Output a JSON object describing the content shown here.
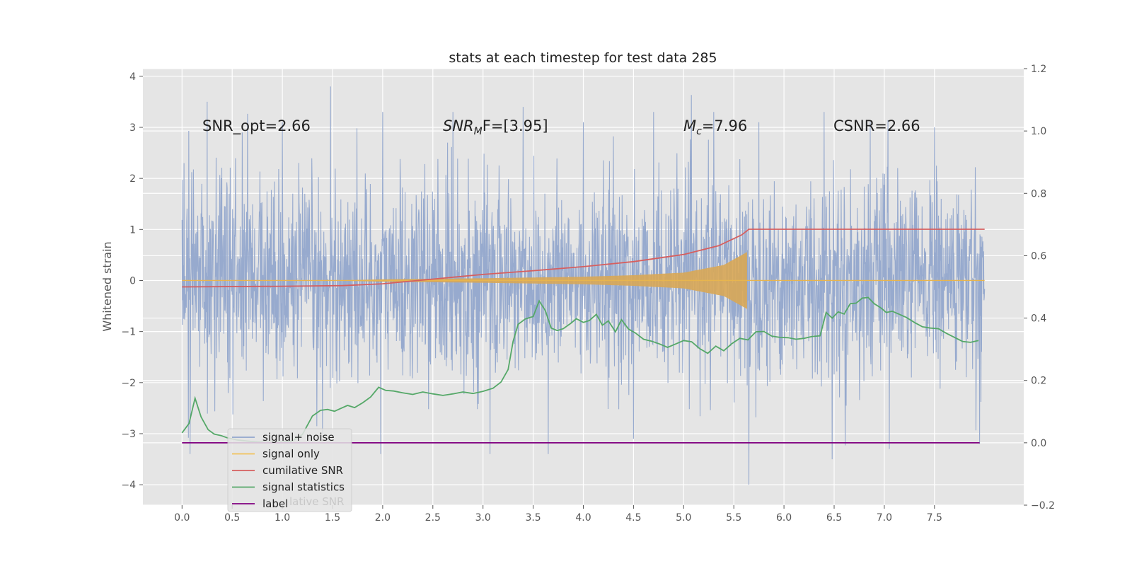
{
  "chart_data": {
    "type": "line",
    "title": "stats at each timestep for test data 285",
    "ylabel": "Whitened strain",
    "xlim": [
      -0.39,
      8.39
    ],
    "ylim": [
      -4.4,
      4.15
    ],
    "ylim_right": [
      -0.2,
      1.2
    ],
    "xticks": [
      "0.0",
      "0.5",
      "1.0",
      "1.5",
      "2.0",
      "2.5",
      "3.0",
      "3.5",
      "4.0",
      "4.5",
      "5.0",
      "5.5",
      "6.0",
      "6.5",
      "7.0",
      "7.5"
    ],
    "yticks": [
      "4",
      "3",
      "2",
      "1",
      "0",
      "−1",
      "−2",
      "−3",
      "−4"
    ],
    "yticks_right": [
      "1.2",
      "1.0",
      "0.8",
      "0.6",
      "0.4",
      "0.2",
      "0.0",
      "−0.2"
    ],
    "grid": true,
    "legend_position": "lower-left",
    "annotations": {
      "snr_opt": "SNR_opt=2.66",
      "snr_mf_main": "SNR",
      "snr_mf_sub": "M",
      "snr_mf_rest": "F=[3.95]",
      "mc_main": "M",
      "mc_sub": "c",
      "mc_rest": "=7.96",
      "csnr": "CSNR=2.66"
    },
    "series": [
      {
        "name": "signal+ noise",
        "color": "#92a6cc",
        "axis": "left",
        "x_range": [
          0.0,
          8.0
        ],
        "noise_band": [
          -1.7,
          1.7
        ],
        "extremes": [
          {
            "x": 0.02,
            "y": 2.3
          },
          {
            "x": 0.25,
            "y": 3.5
          },
          {
            "x": 0.6,
            "y": 2.9
          },
          {
            "x": 1.0,
            "y": 3.1
          },
          {
            "x": 1.48,
            "y": 3.8
          },
          {
            "x": 2.0,
            "y": 3.3
          },
          {
            "x": 2.7,
            "y": 3.3
          },
          {
            "x": 3.4,
            "y": 3.4
          },
          {
            "x": 4.0,
            "y": 3.1
          },
          {
            "x": 4.7,
            "y": 3.3
          },
          {
            "x": 5.3,
            "y": 3.3
          },
          {
            "x": 5.75,
            "y": 3.1
          },
          {
            "x": 6.4,
            "y": 3.3
          },
          {
            "x": 6.86,
            "y": 3.1
          },
          {
            "x": 7.5,
            "y": 3.0
          },
          {
            "x": 0.08,
            "y": -3.4
          },
          {
            "x": 1.4,
            "y": -3.0
          },
          {
            "x": 1.98,
            "y": -3.4
          },
          {
            "x": 3.07,
            "y": -3.4
          },
          {
            "x": 3.65,
            "y": -3.4
          },
          {
            "x": 4.5,
            "y": -3.1
          },
          {
            "x": 5.65,
            "y": -4.0
          },
          {
            "x": 6.48,
            "y": -3.5
          },
          {
            "x": 7.05,
            "y": -3.3
          },
          {
            "x": 7.95,
            "y": -3.2
          }
        ]
      },
      {
        "name": "signal only",
        "color": "#e3b05a",
        "axis": "left",
        "envelope": [
          [
            1.6,
            0.0
          ],
          [
            2.0,
            0.02
          ],
          [
            3.0,
            0.04
          ],
          [
            4.0,
            0.07
          ],
          [
            4.5,
            0.1
          ],
          [
            5.0,
            0.15
          ],
          [
            5.4,
            0.3
          ],
          [
            5.63,
            0.55
          ]
        ],
        "end_x": 8.0
      },
      {
        "name": "cumilative SNR",
        "color": "#d65f5f",
        "axis": "right",
        "x": [
          0.0,
          1.0,
          1.6,
          2.0,
          2.5,
          3.0,
          3.5,
          4.0,
          4.5,
          5.0,
          5.35,
          5.58,
          5.65,
          8.0
        ],
        "y": [
          0.5,
          0.502,
          0.504,
          0.51,
          0.525,
          0.54,
          0.552,
          0.565,
          0.581,
          0.604,
          0.632,
          0.667,
          0.685,
          0.685
        ]
      },
      {
        "name": "signal statistics",
        "color": "#55a868",
        "axis": "right",
        "x": [
          0.0,
          0.07,
          0.13,
          0.19,
          0.26,
          0.32,
          0.39,
          0.45,
          0.55,
          0.7,
          0.85,
          1.0,
          1.1,
          1.2,
          1.3,
          1.38,
          1.45,
          1.52,
          1.58,
          1.65,
          1.72,
          1.8,
          1.88,
          1.96,
          2.03,
          2.11,
          2.2,
          2.3,
          2.4,
          2.5,
          2.6,
          2.7,
          2.8,
          2.9,
          3.0,
          3.1,
          3.18,
          3.25,
          3.3,
          3.35,
          3.42,
          3.5,
          3.56,
          3.62,
          3.68,
          3.74,
          3.8,
          3.87,
          3.93,
          4.0,
          4.06,
          4.13,
          4.19,
          4.25,
          4.32,
          4.38,
          4.45,
          4.52,
          4.6,
          4.68,
          4.76,
          4.84,
          4.92,
          5.0,
          5.08,
          5.16,
          5.24,
          5.32,
          5.4,
          5.48,
          5.56,
          5.64,
          5.72,
          5.8,
          5.88,
          5.96,
          6.04,
          6.12,
          6.2,
          6.28,
          6.36,
          6.42,
          6.48,
          6.54,
          6.6,
          6.66,
          6.72,
          6.78,
          6.84,
          6.9,
          6.96,
          7.02,
          7.08,
          7.15,
          7.22,
          7.3,
          7.38,
          7.46,
          7.54,
          7.62,
          7.7,
          7.78,
          7.86,
          7.94
        ],
        "y": [
          0.032,
          0.062,
          0.143,
          0.083,
          0.042,
          0.028,
          0.023,
          0.016,
          0.009,
          0.004,
          0.001,
          0.002,
          0.006,
          0.027,
          0.086,
          0.104,
          0.107,
          0.101,
          0.11,
          0.12,
          0.113,
          0.128,
          0.147,
          0.178,
          0.168,
          0.166,
          0.16,
          0.155,
          0.163,
          0.157,
          0.152,
          0.157,
          0.163,
          0.158,
          0.165,
          0.175,
          0.195,
          0.235,
          0.325,
          0.38,
          0.397,
          0.405,
          0.455,
          0.425,
          0.368,
          0.36,
          0.366,
          0.382,
          0.398,
          0.386,
          0.392,
          0.412,
          0.377,
          0.391,
          0.356,
          0.395,
          0.365,
          0.352,
          0.332,
          0.326,
          0.317,
          0.306,
          0.317,
          0.328,
          0.324,
          0.302,
          0.287,
          0.31,
          0.295,
          0.318,
          0.335,
          0.33,
          0.356,
          0.357,
          0.342,
          0.338,
          0.337,
          0.332,
          0.335,
          0.341,
          0.343,
          0.418,
          0.4,
          0.42,
          0.413,
          0.446,
          0.448,
          0.464,
          0.466,
          0.446,
          0.434,
          0.418,
          0.422,
          0.412,
          0.402,
          0.386,
          0.372,
          0.368,
          0.366,
          0.351,
          0.338,
          0.325,
          0.322,
          0.328
        ]
      },
      {
        "name": "label",
        "color": "#800080",
        "axis": "right",
        "x": [
          0.0,
          7.95
        ],
        "y": [
          0.0,
          0.0
        ]
      }
    ],
    "legend": [
      {
        "label": "signal+ noise",
        "color": "#92a6cc"
      },
      {
        "label": "signal only",
        "color": "#f0c25a"
      },
      {
        "label": "cumilative SNR",
        "color": "#d65f5f"
      },
      {
        "label": "signal statistics",
        "color": "#55a868"
      },
      {
        "label": "label",
        "color": "#800080"
      }
    ],
    "ghost_legend_text": "lative SNR"
  }
}
